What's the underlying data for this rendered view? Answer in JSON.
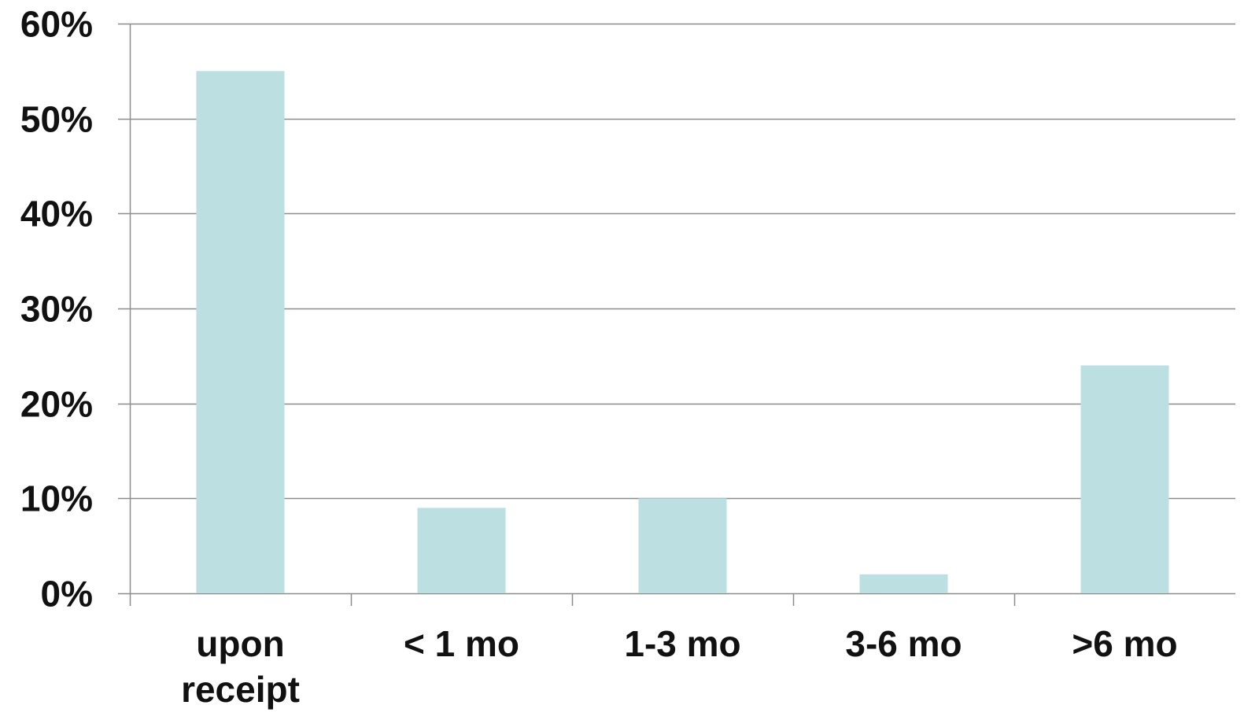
{
  "chart_data": {
    "type": "bar",
    "categories": [
      [
        "upon",
        "receipt"
      ],
      [
        "< 1 mo"
      ],
      [
        "1-3 mo"
      ],
      [
        "3-6 mo"
      ],
      [
        ">6 mo"
      ]
    ],
    "values": [
      55,
      9,
      10,
      2,
      24
    ],
    "ylim": [
      0,
      60
    ],
    "yticks": [
      0,
      10,
      20,
      30,
      40,
      50,
      60
    ],
    "ytick_labels": [
      "0%",
      "10%",
      "20%",
      "30%",
      "40%",
      "50%",
      "60%"
    ],
    "title": "",
    "xlabel": "",
    "ylabel": "",
    "grid": true,
    "legend": "none",
    "colors": {
      "bar": "#bcdfe2",
      "grid": "#8c8c8c",
      "axis": "#8c8c8c",
      "text": "#111111"
    }
  }
}
